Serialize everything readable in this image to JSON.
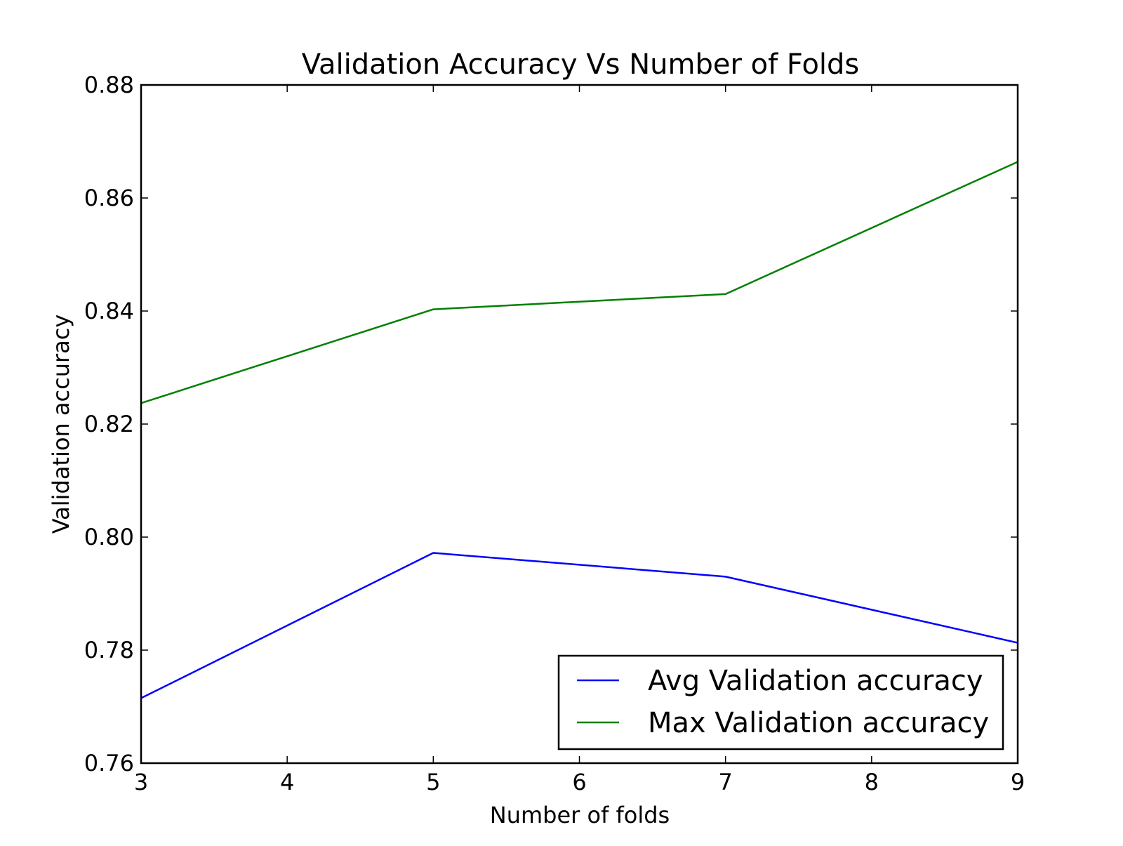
{
  "chart_data": {
    "type": "line",
    "title": "Validation Accuracy Vs Number of Folds",
    "xlabel": "Number of folds",
    "ylabel": "Validation accuracy",
    "xlim": [
      3,
      9
    ],
    "ylim": [
      0.76,
      0.88
    ],
    "x_ticks": [
      3,
      4,
      5,
      6,
      7,
      8,
      9
    ],
    "x_tick_labels": [
      "3",
      "4",
      "5",
      "6",
      "7",
      "8",
      "9"
    ],
    "y_ticks": [
      0.76,
      0.78,
      0.8,
      0.82,
      0.84,
      0.86,
      0.88
    ],
    "y_tick_labels": [
      "0.76",
      "0.78",
      "0.80",
      "0.82",
      "0.84",
      "0.86",
      "0.88"
    ],
    "grid": false,
    "legend_position": "lower-right",
    "x": [
      3,
      5,
      7,
      9
    ],
    "series": [
      {
        "name": "Avg Validation accuracy",
        "color": "#0000ff",
        "values": [
          0.7715,
          0.7972,
          0.793,
          0.7813
        ]
      },
      {
        "name": "Max Validation accuracy",
        "color": "#008000",
        "values": [
          0.8237,
          0.8403,
          0.843,
          0.8664
        ]
      }
    ]
  }
}
